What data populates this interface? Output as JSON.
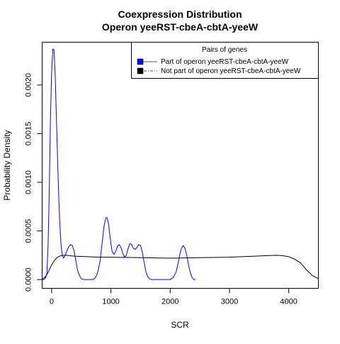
{
  "chart_data": {
    "type": "line",
    "title": "Coexpression Distribution",
    "subtitle": "Operon yeeRST-cbeA-cbtA-yeeW",
    "xlabel": "SCR",
    "ylabel": "Probability Density",
    "xlim": [
      -160,
      4500
    ],
    "ylim": [
      -9e-05,
      0.00244
    ],
    "x_ticks": [
      0,
      1000,
      2000,
      3000,
      4000
    ],
    "x_tick_labels": [
      "0",
      "1000",
      "2000",
      "3000",
      "4000"
    ],
    "y_ticks": [
      0,
      0.0005,
      0.001,
      0.0015,
      0.002
    ],
    "y_tick_labels": [
      "0.0000",
      "0.0005",
      "0.0010",
      "0.0015",
      "0.0020"
    ],
    "grid": false,
    "legend": {
      "title": "Pairs of genes",
      "placement": "top-right"
    },
    "series": [
      {
        "name": "Part of operon yeeRST-cbeA-cbtA-yeeW",
        "color": "#0000ff",
        "line_style": "solid",
        "x": [
          -160,
          -130,
          -100,
          -80,
          -60,
          -40,
          -20,
          0,
          20,
          40,
          60,
          80,
          100,
          120,
          140,
          160,
          180,
          200,
          230,
          260,
          290,
          320,
          350,
          380,
          410,
          440,
          470,
          500,
          540,
          580,
          620,
          660,
          700,
          740,
          780,
          820,
          860,
          880,
          900,
          920,
          940,
          960,
          980,
          1000,
          1020,
          1050,
          1080,
          1110,
          1140,
          1170,
          1200,
          1230,
          1260,
          1290,
          1320,
          1350,
          1380,
          1410,
          1440,
          1470,
          1500,
          1530,
          1560,
          1590,
          1620,
          1650,
          1680,
          1710,
          1740,
          1770,
          1800,
          1850,
          1900,
          1950,
          2000,
          2050,
          2100,
          2130,
          2160,
          2190,
          2220,
          2250,
          2280,
          2310,
          2340,
          2370,
          2400,
          2430
        ],
        "y": [
          0.0,
          0.0,
          2e-05,
          6e-05,
          0.00035,
          0.0009,
          0.00165,
          0.00213,
          0.00237,
          0.00236,
          0.0021,
          0.00168,
          0.00125,
          0.00085,
          0.00055,
          0.00035,
          0.00025,
          0.00022,
          0.00025,
          0.0003,
          0.00034,
          0.00036,
          0.00035,
          0.00029,
          0.00019,
          9e-05,
          4e-05,
          1e-05,
          0.0,
          0.0,
          0.0,
          0.0,
          0.0,
          2e-05,
          8e-05,
          0.0002,
          0.00042,
          0.00053,
          0.0006,
          0.00064,
          0.00063,
          0.00057,
          0.00047,
          0.00037,
          0.00029,
          0.00026,
          0.00029,
          0.00034,
          0.00036,
          0.00033,
          0.00027,
          0.00023,
          0.00025,
          0.00032,
          0.00037,
          0.00036,
          0.00032,
          0.00031,
          0.00033,
          0.00036,
          0.00035,
          0.00028,
          0.00018,
          8e-05,
          3e-05,
          1e-05,
          0.0,
          0.0,
          0.0,
          0.0,
          0.0,
          0.0,
          0.0,
          0.0,
          0.0,
          2e-05,
          8e-05,
          0.00016,
          0.00025,
          0.00032,
          0.00035,
          0.00032,
          0.00025,
          0.00015,
          7e-05,
          2e-05,
          0.0,
          0.0
        ]
      },
      {
        "name": "Not part of operon yeeRST-cbeA-cbtA-yeeW",
        "color": "#000000",
        "line_style": "solid",
        "x": [
          -160,
          -120,
          -80,
          -40,
          0,
          50,
          100,
          150,
          200,
          250,
          300,
          400,
          600,
          800,
          1000,
          1500,
          2000,
          2500,
          3000,
          3200,
          3400,
          3600,
          3800,
          3900,
          4000,
          4100,
          4200,
          4300,
          4400,
          4500
        ],
        "y": [
          5e-06,
          2e-05,
          5e-05,
          0.0001,
          0.00015,
          0.0002,
          0.00023,
          0.000245,
          0.00025,
          0.00025,
          0.000245,
          0.00024,
          0.000235,
          0.00023,
          0.00023,
          0.000225,
          0.00022,
          0.000225,
          0.00023,
          0.000235,
          0.00024,
          0.000245,
          0.00025,
          0.000245,
          0.000235,
          0.00021,
          0.00017,
          0.0001,
          4e-05,
          1e-05
        ]
      }
    ]
  }
}
